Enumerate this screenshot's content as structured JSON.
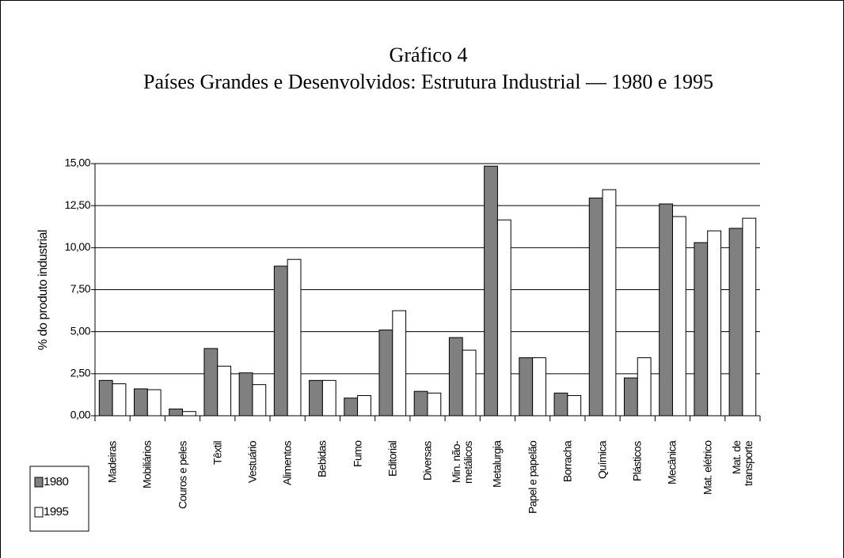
{
  "chart_data": {
    "type": "bar",
    "title": "Gráfico 4",
    "subtitle": "Países Grandes e Desenvolvidos: Estrutura Industrial — 1980 e 1995",
    "y_label": "% do  produto industrial",
    "categories": [
      "Madeiras",
      "Mobiliários",
      "Couros e peles",
      "Têxtil",
      "Vestuário",
      "Alimentos",
      "Bebidas",
      "Fumo",
      "Editorial",
      "Diversas",
      "Min. não-metálicos",
      "Metalurgia",
      "Papel e papelão",
      "Borracha",
      "Química",
      "Plásticos",
      "Mecânica",
      "Mat. elétrico",
      "Mat. de transporte"
    ],
    "series": [
      {
        "name": "1980",
        "color": "#808080",
        "values": [
          2.1,
          1.6,
          0.4,
          4.0,
          2.55,
          8.9,
          2.1,
          1.05,
          5.1,
          1.45,
          4.65,
          14.85,
          3.45,
          1.35,
          12.95,
          2.25,
          12.6,
          10.3,
          11.15
        ]
      },
      {
        "name": "1995",
        "color": "#ffffff",
        "values": [
          1.9,
          1.55,
          0.25,
          2.95,
          1.85,
          9.3,
          2.1,
          1.2,
          6.25,
          1.35,
          3.9,
          11.65,
          3.45,
          1.2,
          13.45,
          3.45,
          11.85,
          11.0,
          11.75
        ]
      }
    ],
    "ylim": [
      0,
      15
    ],
    "yticks": [
      {
        "value": 0,
        "label": "0,00"
      },
      {
        "value": 2.5,
        "label": "2,50"
      },
      {
        "value": 5,
        "label": "5,00"
      },
      {
        "value": 7.5,
        "label": "7,50"
      },
      {
        "value": 10,
        "label": "10,00"
      },
      {
        "value": 12.5,
        "label": "12,50"
      },
      {
        "value": 15,
        "label": "15,00"
      }
    ],
    "grid": true,
    "legend": "bottom-left"
  }
}
